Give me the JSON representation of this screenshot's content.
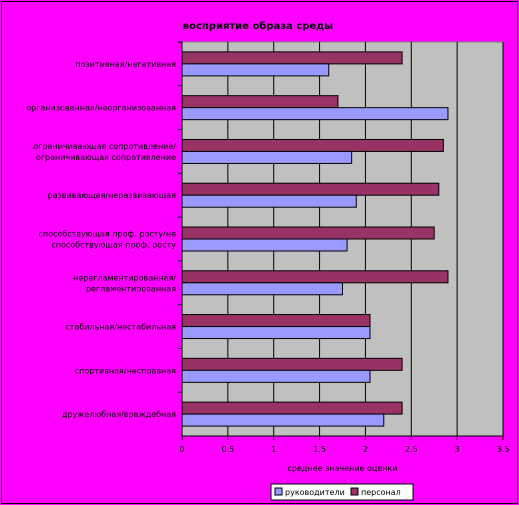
{
  "colors": {
    "page_bg": "#ff00ff",
    "plot_bg": "#c0c0c0",
    "grid": "#000000",
    "series": [
      "#9999ff",
      "#993366"
    ]
  },
  "chart_data": {
    "type": "bar",
    "orientation": "horizontal",
    "title": "восприятие образа среды",
    "xlabel": "среднее значение оценки",
    "ylabel": "",
    "xlim": [
      0,
      3.5
    ],
    "xticks": [
      "0",
      "0.5",
      "1",
      "1.5",
      "2",
      "2.5",
      "3",
      "3.5"
    ],
    "grid": true,
    "legend_position": "bottom",
    "categories": [
      [
        "позитивная/негативная"
      ],
      [
        "организованная/неорганизованная"
      ],
      [
        "ограничивающая сопротивление/",
        "ограничивающая сопротивление"
      ],
      [
        "развивающая/неразвивающая"
      ],
      [
        "способствующая проф. росту/не",
        "способствующая проф. росту"
      ],
      [
        "нерегламентированная/",
        "регламентированная"
      ],
      [
        "стабильная/нестабильная"
      ],
      [
        "спортивная/несправная"
      ],
      [
        "дружелюбная/враждебная"
      ]
    ],
    "series": [
      {
        "name": "руководители",
        "values": [
          1.6,
          2.9,
          1.85,
          1.9,
          1.8,
          1.75,
          2.05,
          2.05,
          2.2
        ]
      },
      {
        "name": "персонал",
        "values": [
          2.4,
          1.7,
          2.85,
          2.8,
          2.75,
          2.9,
          2.05,
          2.4,
          2.4
        ]
      }
    ]
  }
}
